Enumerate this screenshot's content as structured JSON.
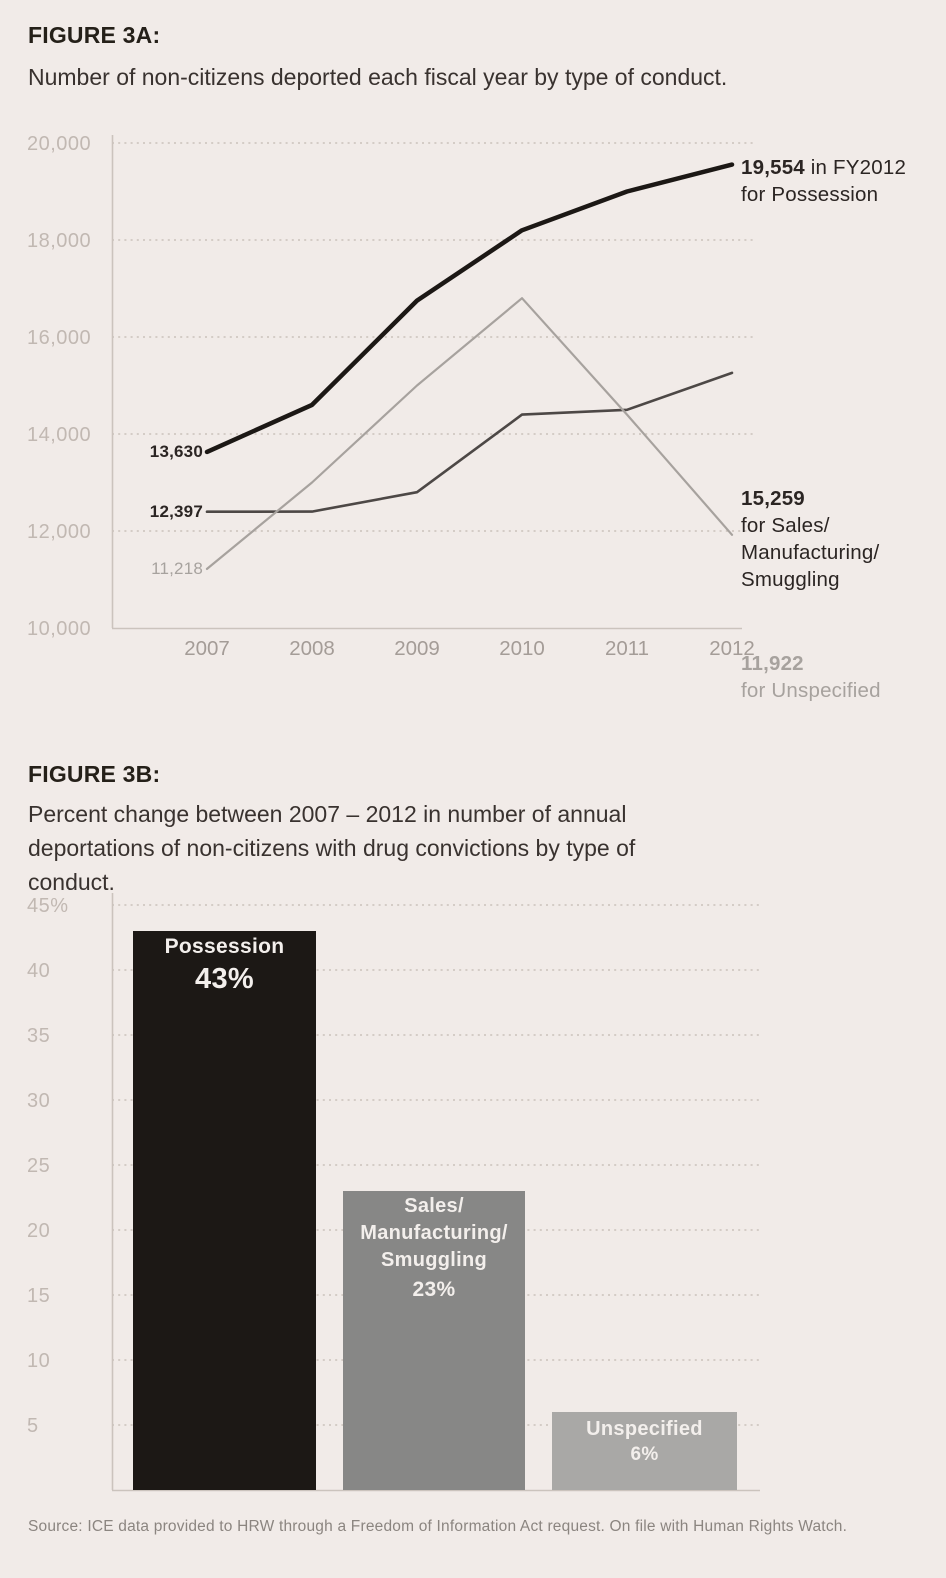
{
  "figures": [
    {
      "label": "FIGURE 3A:"
    },
    {
      "label": "FIGURE 3B:"
    }
  ],
  "chart_data": [
    {
      "type": "line",
      "title": "Number of non-citizens deported each fiscal year by type of conduct.",
      "x": [
        2007,
        2008,
        2009,
        2010,
        2011,
        2012
      ],
      "series": [
        {
          "name": "Possession",
          "color": "#1c1815",
          "stroke_width": 4.5,
          "values": [
            13630,
            14600,
            16750,
            18200,
            19000,
            19554
          ]
        },
        {
          "name": "Sales/Manufacturing/Smuggling",
          "color": "#4d4846",
          "stroke_width": 2.6,
          "values": [
            12397,
            12400,
            12800,
            14400,
            14500,
            15259
          ]
        },
        {
          "name": "Unspecified",
          "color": "#a7a29e",
          "stroke_width": 2.2,
          "values": [
            11218,
            13000,
            15000,
            16800,
            14400,
            11922
          ]
        }
      ],
      "ylim": [
        10000,
        20000
      ],
      "yticks": [
        20000,
        18000,
        16000,
        14000,
        12000,
        10000
      ],
      "ytick_labels": [
        "20,000",
        "18,000",
        "16,000",
        "14,000",
        "12,000",
        "10,000"
      ],
      "grid": "dotted-horizontal",
      "start_labels": [
        {
          "text": "13,630",
          "series": "Possession",
          "bold": true,
          "color": "#2b2523"
        },
        {
          "text": "12,397",
          "series": "Sales/Manufacturing/Smuggling",
          "bold": true,
          "color": "#2b2523"
        },
        {
          "text": "11,218",
          "series": "Unspecified",
          "bold": false,
          "color": "#a7a29e"
        }
      ],
      "end_annotations": [
        {
          "value": "19,554",
          "suffix": " in FY2012",
          "lines": [
            "for Possession"
          ],
          "color": "#2b2523"
        },
        {
          "value": "15,259",
          "suffix": "",
          "lines": [
            "for Sales/",
            "Manufacturing/",
            "Smuggling"
          ],
          "color": "#2b2523"
        },
        {
          "value": "11,922",
          "suffix": "",
          "lines": [
            "for Unspecified"
          ],
          "color": "#a7a29e"
        }
      ]
    },
    {
      "type": "bar",
      "title": "Percent change between 2007 – 2012 in number of annual deportations of non-citizens with drug convictions by type of conduct.",
      "categories": [
        "Possession",
        "Sales/Manufacturing/Smuggling",
        "Unspecified"
      ],
      "values": [
        43,
        23,
        6
      ],
      "value_labels": [
        "43%",
        "23%",
        "6%"
      ],
      "bar_text_lines": [
        [
          "Possession"
        ],
        [
          "Sales/",
          "Manufacturing/",
          "Smuggling"
        ],
        [
          "Unspecified"
        ]
      ],
      "colors": [
        "#1c1815",
        "#878786",
        "#a9a8a6"
      ],
      "ylim": [
        0,
        45
      ],
      "yticks": [
        45,
        40,
        35,
        30,
        25,
        20,
        15,
        10,
        5
      ],
      "ytick_labels": [
        "45%",
        "40",
        "35",
        "30",
        "25",
        "20",
        "15",
        "10",
        "5"
      ],
      "grid": "dotted-horizontal",
      "legend": "none"
    }
  ],
  "source": {
    "text": "Source: ICE data provided to HRW through a Freedom of Information Act request. On file with Human Rights Watch."
  }
}
